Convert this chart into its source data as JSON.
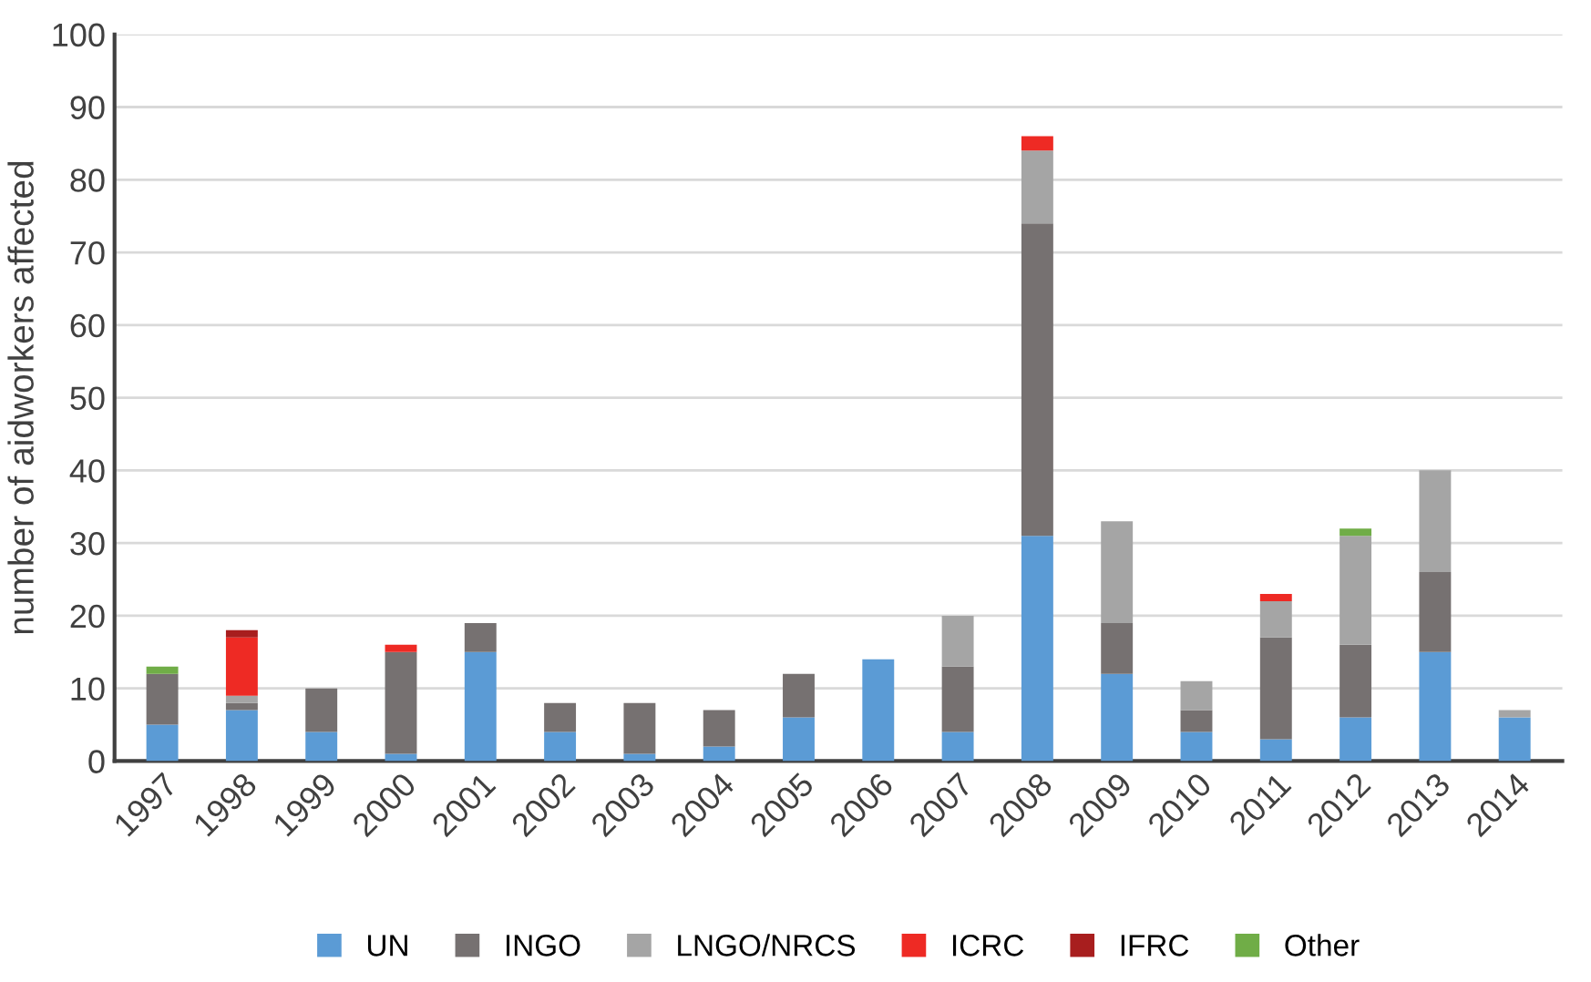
{
  "chart_data": {
    "type": "bar",
    "stacked": true,
    "ylabel": "number of aidworkers affected",
    "categories": [
      "1997",
      "1998",
      "1999",
      "2000",
      "2001",
      "2002",
      "2003",
      "2004",
      "2005",
      "2006",
      "2007",
      "2008",
      "2009",
      "2010",
      "2011",
      "2012",
      "2013",
      "2014"
    ],
    "series": [
      {
        "name": "UN",
        "color": "#5b9bd5",
        "values": [
          5,
          7,
          4,
          1,
          15,
          4,
          1,
          2,
          6,
          14,
          4,
          31,
          12,
          4,
          3,
          6,
          15,
          6
        ]
      },
      {
        "name": "INGO",
        "color": "#767171",
        "values": [
          7,
          1,
          6,
          14,
          4,
          4,
          7,
          5,
          6,
          0,
          9,
          43,
          7,
          3,
          14,
          10,
          11,
          0
        ]
      },
      {
        "name": "LNGO/NRCS",
        "color": "#a5a5a5",
        "values": [
          0,
          1,
          0,
          0,
          0,
          0,
          0,
          0,
          0,
          0,
          7,
          10,
          14,
          4,
          5,
          15,
          14,
          1
        ]
      },
      {
        "name": "ICRC",
        "color": "#ee2a24",
        "values": [
          0,
          8,
          0,
          1,
          0,
          0,
          0,
          0,
          0,
          0,
          0,
          2,
          0,
          0,
          1,
          0,
          0,
          0
        ]
      },
      {
        "name": "IFRC",
        "color": "#a81e1e",
        "values": [
          0,
          1,
          0,
          0,
          0,
          0,
          0,
          0,
          0,
          0,
          0,
          0,
          0,
          0,
          0,
          0,
          0,
          0
        ]
      },
      {
        "name": "Other",
        "color": "#70ad47",
        "values": [
          1,
          0,
          0,
          0,
          0,
          0,
          0,
          0,
          0,
          0,
          0,
          0,
          0,
          0,
          0,
          1,
          0,
          0
        ]
      }
    ],
    "ylim": [
      0,
      100
    ],
    "yticks": [
      0,
      10,
      20,
      30,
      40,
      50,
      60,
      70,
      80,
      90,
      100
    ],
    "grid": "y",
    "legend": "bottom"
  }
}
